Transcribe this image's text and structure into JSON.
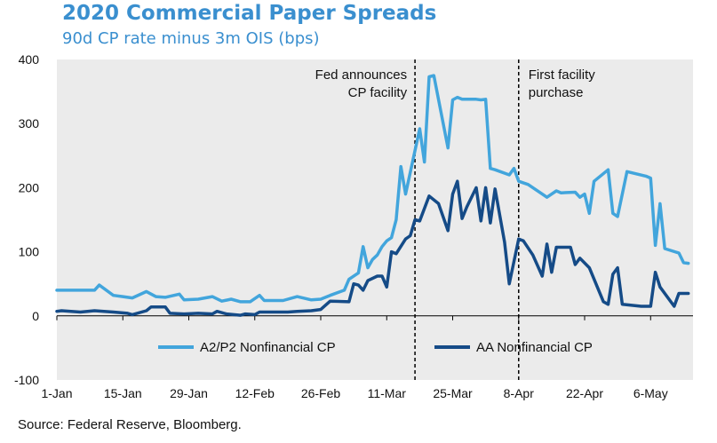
{
  "title": "2020 Commercial Paper Spreads",
  "subtitle": "90d CP rate minus 3m OIS (bps)",
  "source": "Source: Federal Reserve, Bloomberg.",
  "colors": {
    "plot_bg": "#ebebeb",
    "a2p2": "#42a5dc",
    "aa": "#154b87",
    "annotation_line": "#000000"
  },
  "chart_data": {
    "type": "line",
    "ylim": [
      -100,
      400
    ],
    "yticks": [
      -100,
      0,
      100,
      200,
      300,
      400
    ],
    "xticks": [
      {
        "label": "1-Jan",
        "date": "2020-01-01"
      },
      {
        "label": "15-Jan",
        "date": "2020-01-15"
      },
      {
        "label": "29-Jan",
        "date": "2020-01-29"
      },
      {
        "label": "12-Feb",
        "date": "2020-02-12"
      },
      {
        "label": "26-Feb",
        "date": "2020-02-26"
      },
      {
        "label": "11-Mar",
        "date": "2020-03-11"
      },
      {
        "label": "25-Mar",
        "date": "2020-03-25"
      },
      {
        "label": "8-Apr",
        "date": "2020-04-08"
      },
      {
        "label": "22-Apr",
        "date": "2020-04-22"
      },
      {
        "label": "6-May",
        "date": "2020-05-06"
      }
    ],
    "xlim": [
      "2020-01-01",
      "2020-05-15"
    ],
    "annotations": [
      {
        "date": "2020-03-17",
        "text": [
          "Fed announces",
          "CP facility"
        ],
        "align": "right"
      },
      {
        "date": "2020-04-08",
        "text": [
          "First facility",
          "purchase"
        ],
        "align": "left"
      }
    ],
    "legend_position": "bottom",
    "series": [
      {
        "name": "A2/P2 Nonfinancial CP",
        "color": "#42a5dc",
        "points": [
          [
            "2020-01-01",
            40
          ],
          [
            "2020-01-06",
            40
          ],
          [
            "2020-01-09",
            40
          ],
          [
            "2020-01-10",
            48
          ],
          [
            "2020-01-13",
            32
          ],
          [
            "2020-01-15",
            30
          ],
          [
            "2020-01-17",
            28
          ],
          [
            "2020-01-20",
            38
          ],
          [
            "2020-01-22",
            30
          ],
          [
            "2020-01-24",
            29
          ],
          [
            "2020-01-27",
            34
          ],
          [
            "2020-01-28",
            25
          ],
          [
            "2020-01-31",
            26
          ],
          [
            "2020-02-03",
            30
          ],
          [
            "2020-02-05",
            23
          ],
          [
            "2020-02-07",
            26
          ],
          [
            "2020-02-09",
            22
          ],
          [
            "2020-02-11",
            22
          ],
          [
            "2020-02-13",
            32
          ],
          [
            "2020-02-14",
            24
          ],
          [
            "2020-02-16",
            24
          ],
          [
            "2020-02-18",
            24
          ],
          [
            "2020-02-21",
            30
          ],
          [
            "2020-02-24",
            25
          ],
          [
            "2020-02-26",
            26
          ],
          [
            "2020-02-28",
            32
          ],
          [
            "2020-03-02",
            40
          ],
          [
            "2020-03-03",
            57
          ],
          [
            "2020-03-05",
            67
          ],
          [
            "2020-03-06",
            108
          ],
          [
            "2020-03-07",
            75
          ],
          [
            "2020-03-08",
            88
          ],
          [
            "2020-03-09",
            95
          ],
          [
            "2020-03-10",
            108
          ],
          [
            "2020-03-11",
            117
          ],
          [
            "2020-03-12",
            122
          ],
          [
            "2020-03-13",
            150
          ],
          [
            "2020-03-14",
            233
          ],
          [
            "2020-03-15",
            190
          ],
          [
            "2020-03-18",
            292
          ],
          [
            "2020-03-19",
            240
          ],
          [
            "2020-03-20",
            373
          ],
          [
            "2020-03-21",
            375
          ],
          [
            "2020-03-24",
            262
          ],
          [
            "2020-03-25",
            337
          ],
          [
            "2020-03-26",
            341
          ],
          [
            "2020-03-27",
            338
          ],
          [
            "2020-03-30",
            338
          ],
          [
            "2020-03-31",
            337
          ],
          [
            "2020-04-01",
            338
          ],
          [
            "2020-04-02",
            230
          ],
          [
            "2020-04-03",
            228
          ],
          [
            "2020-04-06",
            220
          ],
          [
            "2020-04-07",
            230
          ],
          [
            "2020-04-08",
            210
          ],
          [
            "2020-04-10",
            205
          ],
          [
            "2020-04-13",
            190
          ],
          [
            "2020-04-14",
            185
          ],
          [
            "2020-04-15",
            190
          ],
          [
            "2020-04-16",
            195
          ],
          [
            "2020-04-17",
            192
          ],
          [
            "2020-04-20",
            193
          ],
          [
            "2020-04-21",
            185
          ],
          [
            "2020-04-22",
            190
          ],
          [
            "2020-04-23",
            160
          ],
          [
            "2020-04-24",
            210
          ],
          [
            "2020-04-27",
            228
          ],
          [
            "2020-04-28",
            160
          ],
          [
            "2020-04-29",
            155
          ],
          [
            "2020-05-01",
            225
          ],
          [
            "2020-05-05",
            218
          ],
          [
            "2020-05-06",
            215
          ],
          [
            "2020-05-07",
            110
          ],
          [
            "2020-05-08",
            175
          ],
          [
            "2020-05-09",
            105
          ],
          [
            "2020-05-12",
            98
          ],
          [
            "2020-05-13",
            83
          ],
          [
            "2020-05-14",
            82
          ]
        ]
      },
      {
        "name": "AA Nonfinancial CP",
        "color": "#154b87",
        "points": [
          [
            "2020-01-01",
            7
          ],
          [
            "2020-01-02",
            8
          ],
          [
            "2020-01-06",
            6
          ],
          [
            "2020-01-09",
            8
          ],
          [
            "2020-01-13",
            6
          ],
          [
            "2020-01-16",
            4
          ],
          [
            "2020-01-17",
            2
          ],
          [
            "2020-01-20",
            8
          ],
          [
            "2020-01-21",
            14
          ],
          [
            "2020-01-24",
            14
          ],
          [
            "2020-01-25",
            4
          ],
          [
            "2020-01-28",
            3
          ],
          [
            "2020-01-31",
            4
          ],
          [
            "2020-02-03",
            3
          ],
          [
            "2020-02-04",
            7
          ],
          [
            "2020-02-06",
            3
          ],
          [
            "2020-02-09",
            1
          ],
          [
            "2020-02-10",
            3
          ],
          [
            "2020-02-12",
            2
          ],
          [
            "2020-02-13",
            6
          ],
          [
            "2020-02-16",
            6
          ],
          [
            "2020-02-19",
            6
          ],
          [
            "2020-02-21",
            7
          ],
          [
            "2020-02-24",
            8
          ],
          [
            "2020-02-26",
            10
          ],
          [
            "2020-02-28",
            23
          ],
          [
            "2020-03-03",
            22
          ],
          [
            "2020-03-04",
            50
          ],
          [
            "2020-03-05",
            48
          ],
          [
            "2020-03-06",
            40
          ],
          [
            "2020-03-07",
            55
          ],
          [
            "2020-03-09",
            62
          ],
          [
            "2020-03-10",
            62
          ],
          [
            "2020-03-11",
            45
          ],
          [
            "2020-03-12",
            100
          ],
          [
            "2020-03-13",
            97
          ],
          [
            "2020-03-15",
            120
          ],
          [
            "2020-03-16",
            125
          ],
          [
            "2020-03-17",
            150
          ],
          [
            "2020-03-18",
            148
          ],
          [
            "2020-03-20",
            187
          ],
          [
            "2020-03-22",
            175
          ],
          [
            "2020-03-24",
            133
          ],
          [
            "2020-03-25",
            190
          ],
          [
            "2020-03-26",
            210
          ],
          [
            "2020-03-27",
            152
          ],
          [
            "2020-03-28",
            170
          ],
          [
            "2020-03-30",
            200
          ],
          [
            "2020-03-31",
            148
          ],
          [
            "2020-04-01",
            200
          ],
          [
            "2020-04-02",
            145
          ],
          [
            "2020-04-03",
            198
          ],
          [
            "2020-04-05",
            115
          ],
          [
            "2020-04-06",
            50
          ],
          [
            "2020-04-08",
            120
          ],
          [
            "2020-04-09",
            117
          ],
          [
            "2020-04-11",
            95
          ],
          [
            "2020-04-13",
            62
          ],
          [
            "2020-04-14",
            112
          ],
          [
            "2020-04-15",
            68
          ],
          [
            "2020-04-16",
            107
          ],
          [
            "2020-04-17",
            107
          ],
          [
            "2020-04-19",
            107
          ],
          [
            "2020-04-20",
            80
          ],
          [
            "2020-04-21",
            90
          ],
          [
            "2020-04-23",
            75
          ],
          [
            "2020-04-26",
            22
          ],
          [
            "2020-04-27",
            18
          ],
          [
            "2020-04-28",
            65
          ],
          [
            "2020-04-29",
            75
          ],
          [
            "2020-04-30",
            18
          ],
          [
            "2020-05-04",
            15
          ],
          [
            "2020-05-06",
            15
          ],
          [
            "2020-05-07",
            68
          ],
          [
            "2020-05-08",
            45
          ],
          [
            "2020-05-11",
            15
          ],
          [
            "2020-05-12",
            35
          ],
          [
            "2020-05-14",
            35
          ]
        ]
      }
    ]
  }
}
